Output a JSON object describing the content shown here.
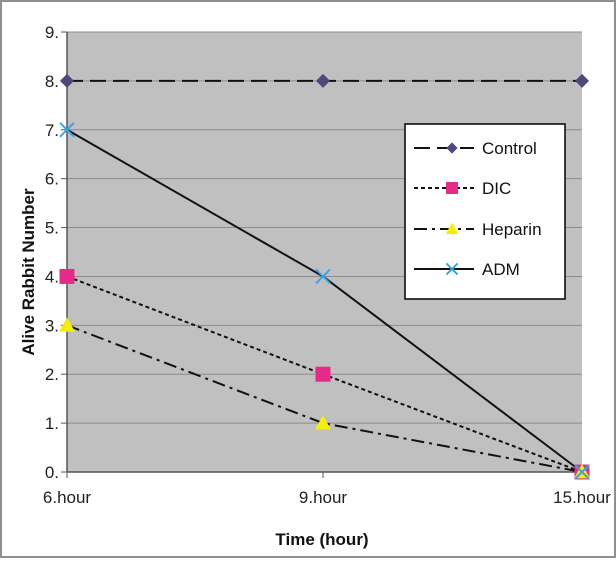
{
  "chart_data": {
    "type": "line",
    "categories": [
      "6.hour",
      "9.hour",
      "15.hour"
    ],
    "xlabel": "Time  (hour)",
    "ylabel": "Alive Rabbit Number",
    "ylim": [
      0,
      9
    ],
    "y_ticks": [
      "0.",
      "1.",
      "2.",
      "3.",
      "4.",
      "5.",
      "6.",
      "7.",
      "8.",
      "9."
    ],
    "grid": "horizontal",
    "legend_position": "right",
    "plot_background": "#c0c0c0",
    "series": [
      {
        "name": "Control",
        "values": [
          8,
          8,
          8
        ],
        "color": "#4b4a7a",
        "marker": "diamond",
        "dash": "long-dash"
      },
      {
        "name": "DIC",
        "values": [
          4,
          2,
          0
        ],
        "color": "#e62a8a",
        "marker": "square",
        "dash": "dotted"
      },
      {
        "name": "Heparin",
        "values": [
          3,
          1,
          0
        ],
        "color": "#f5f000",
        "marker": "triangle",
        "dash": "dash-dot"
      },
      {
        "name": "ADM",
        "values": [
          7,
          4,
          0
        ],
        "color": "#3aa6e0",
        "marker": "x",
        "dash": "solid"
      }
    ]
  }
}
